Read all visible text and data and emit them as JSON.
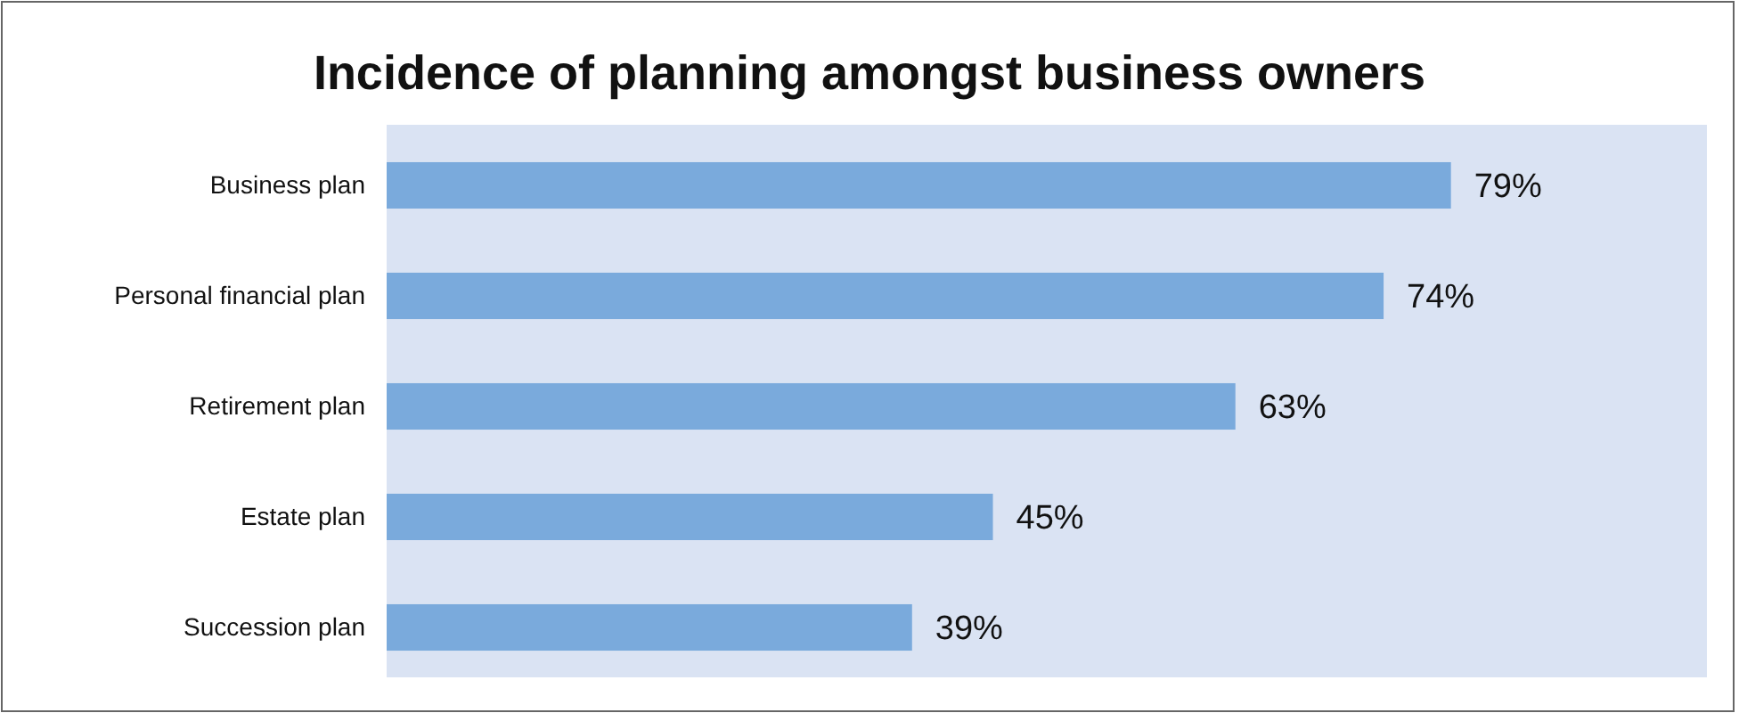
{
  "chart_data": {
    "type": "bar",
    "orientation": "horizontal",
    "title": "Incidence of planning amongst business owners",
    "categories": [
      "Business plan",
      "Personal financial plan",
      "Retirement plan",
      "Estate plan",
      "Succession plan"
    ],
    "values": [
      79,
      74,
      63,
      45,
      39
    ],
    "value_labels": [
      "79%",
      "74%",
      "63%",
      "45%",
      "39%"
    ],
    "color": "#7aaadc",
    "xlim": [
      0,
      98
    ]
  }
}
